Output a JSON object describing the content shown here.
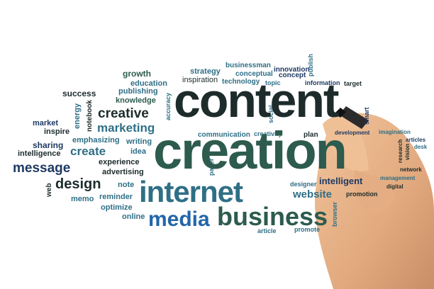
{
  "palette": {
    "navy": "#1f3a63",
    "teal": "#2f6f86",
    "dark": "#1d2b2b",
    "green": "#2d5b4e",
    "blue": "#2366a8",
    "skin": "#e8b48a",
    "skin_shadow": "#c98e67"
  },
  "cloud": {
    "words": [
      "growth",
      "strategy",
      "businessman",
      "innovation",
      "publish",
      "education",
      "conceptual",
      "concept",
      "inspiration",
      "technology",
      "topic",
      "information",
      "target",
      "success",
      "publishing",
      "knowledge",
      "accuracy",
      "energy",
      "notebook",
      "creative",
      "social",
      "smart",
      "market",
      "inspire",
      "marketing",
      "communication",
      "creativity",
      "plan",
      "development",
      "imagination",
      "articles",
      "sharing",
      "emphasizing",
      "writing",
      "intelligence",
      "create",
      "idea",
      "research",
      "vision",
      "desk",
      "message",
      "experience",
      "advertising",
      "paper",
      "network",
      "web",
      "design",
      "note",
      "intelligent",
      "management",
      "designer",
      "website",
      "digital",
      "memo",
      "reminder",
      "promotion",
      "optimize",
      "online",
      "browser",
      "article",
      "promote",
      "content",
      "creation",
      "internet",
      "media",
      "business"
    ]
  },
  "image": {
    "subject": "hand-holding-marker"
  }
}
